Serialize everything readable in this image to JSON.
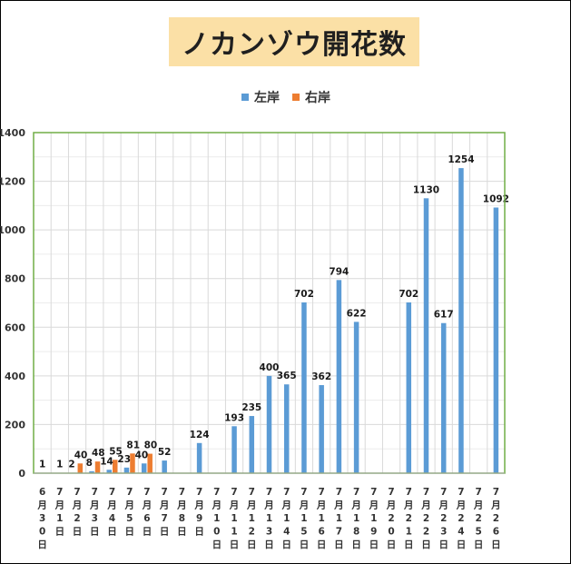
{
  "chart_data": {
    "type": "bar",
    "title": "ノカンゾウ開花数",
    "xlabel": "",
    "ylabel": "",
    "ylim": [
      0,
      1400
    ],
    "yticks": [
      "0",
      "200",
      "400",
      "600",
      "800",
      "1000",
      "1200",
      "1400"
    ],
    "legend_position": "top",
    "categories": [
      [
        "6",
        "月",
        "3",
        "0",
        "日"
      ],
      [
        "7",
        "月",
        "1",
        "日"
      ],
      [
        "7",
        "月",
        "2",
        "日"
      ],
      [
        "7",
        "月",
        "3",
        "日"
      ],
      [
        "7",
        "月",
        "4",
        "日"
      ],
      [
        "7",
        "月",
        "5",
        "日"
      ],
      [
        "7",
        "月",
        "6",
        "日"
      ],
      [
        "7",
        "月",
        "7",
        "日"
      ],
      [
        "7",
        "月",
        "8",
        "日"
      ],
      [
        "7",
        "月",
        "9",
        "日"
      ],
      [
        "7",
        "月",
        "1",
        "0",
        "日"
      ],
      [
        "7",
        "月",
        "1",
        "1",
        "日"
      ],
      [
        "7",
        "月",
        "1",
        "2",
        "日"
      ],
      [
        "7",
        "月",
        "1",
        "3",
        "日"
      ],
      [
        "7",
        "月",
        "1",
        "4",
        "日"
      ],
      [
        "7",
        "月",
        "1",
        "5",
        "日"
      ],
      [
        "7",
        "月",
        "1",
        "6",
        "日"
      ],
      [
        "7",
        "月",
        "1",
        "7",
        "日"
      ],
      [
        "7",
        "月",
        "1",
        "8",
        "日"
      ],
      [
        "7",
        "月",
        "1",
        "9",
        "日"
      ],
      [
        "7",
        "月",
        "2",
        "0",
        "日"
      ],
      [
        "7",
        "月",
        "2",
        "1",
        "日"
      ],
      [
        "7",
        "月",
        "2",
        "2",
        "日"
      ],
      [
        "7",
        "月",
        "2",
        "3",
        "日"
      ],
      [
        "7",
        "月",
        "2",
        "4",
        "日"
      ],
      [
        "7",
        "月",
        "2",
        "5",
        "日"
      ],
      [
        "7",
        "月",
        "2",
        "6",
        "日"
      ]
    ],
    "series": [
      {
        "name": "左岸",
        "color": "#5b9bd5",
        "values": [
          1,
          1,
          2,
          8,
          14,
          23,
          40,
          52,
          null,
          124,
          null,
          193,
          235,
          400,
          365,
          702,
          362,
          794,
          622,
          null,
          null,
          702,
          1130,
          617,
          1254,
          null,
          1092
        ]
      },
      {
        "name": "右岸",
        "color": "#ed7d31",
        "values": [
          null,
          null,
          40,
          48,
          55,
          81,
          80,
          null,
          null,
          null,
          null,
          null,
          null,
          null,
          null,
          null,
          null,
          null,
          null,
          null,
          null,
          null,
          null,
          null,
          null,
          null,
          null
        ]
      }
    ]
  },
  "colors": {
    "title_background": "#fbe0a6",
    "plot_border": "#70ad47",
    "grid": "#d9d9d9"
  }
}
